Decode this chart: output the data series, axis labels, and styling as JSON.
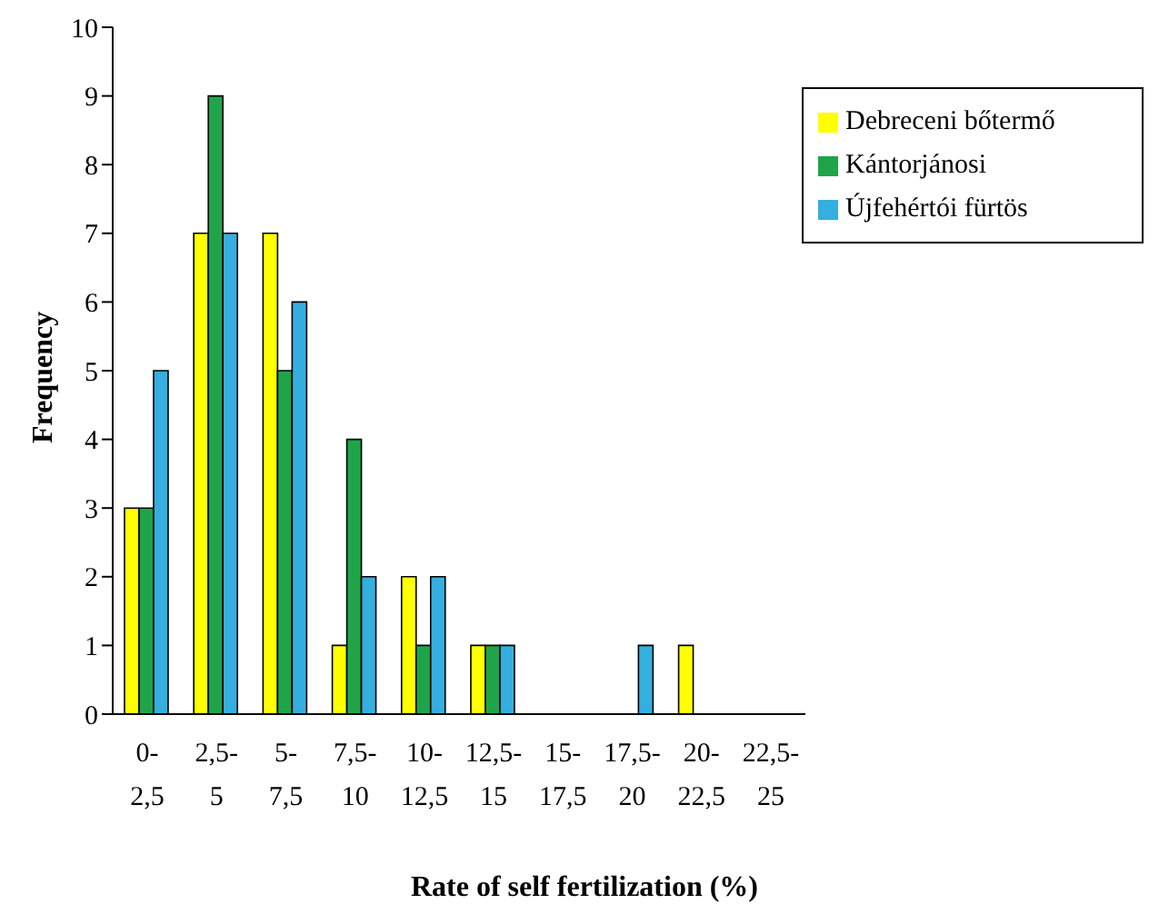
{
  "chart_data": {
    "type": "bar",
    "xlabel": "Rate of self fertilization (%)",
    "ylabel": "Frequency",
    "categories": [
      "0-2,5",
      "2,5-5",
      "5-7,5",
      "7,5-10",
      "10-12,5",
      "12,5-15",
      "15-17,5",
      "17,5-20",
      "20-22,5",
      "22,5-25"
    ],
    "series": [
      {
        "name": "Debreceni bőtermő",
        "color": "#ffff00",
        "values": [
          3,
          7,
          7,
          1,
          2,
          1,
          0,
          0,
          1,
          0
        ]
      },
      {
        "name": "Kántorjánosi",
        "color": "#1fa44a",
        "values": [
          3,
          9,
          5,
          4,
          1,
          1,
          0,
          0,
          0,
          0
        ]
      },
      {
        "name": "Újfehértói fürtös",
        "color": "#35aee0",
        "values": [
          5,
          7,
          6,
          2,
          2,
          1,
          0,
          1,
          0,
          0
        ]
      }
    ],
    "ylim": [
      0,
      10
    ],
    "yticks": [
      0,
      1,
      2,
      3,
      4,
      5,
      6,
      7,
      8,
      9,
      10
    ],
    "grid": false,
    "legend": "top right"
  }
}
